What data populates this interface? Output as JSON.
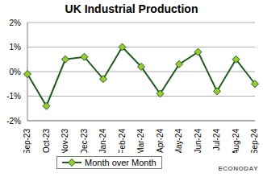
{
  "chart_data": {
    "type": "line",
    "title": "UK Industrial Production",
    "categories": [
      "Sep-23",
      "Oct-23",
      "Nov-23",
      "Dec-23",
      "Jan-24",
      "Feb-24",
      "Mar-24",
      "Apr-24",
      "May-24",
      "Jun-24",
      "Jul-24",
      "Aug-24",
      "Sep-24"
    ],
    "series": [
      {
        "name": "Month over Month",
        "color": "#1f5a1f",
        "marker": "diamond",
        "values": [
          -0.1,
          -1.4,
          0.5,
          0.6,
          -0.3,
          1.0,
          0.2,
          -0.9,
          0.3,
          0.8,
          -0.8,
          0.5,
          -0.5
        ]
      }
    ],
    "ylim": [
      -2,
      2
    ],
    "yticks": [
      {
        "value": -2,
        "label": "-2%"
      },
      {
        "value": -1,
        "label": "-1%"
      },
      {
        "value": 0,
        "label": "0%"
      },
      {
        "value": 1,
        "label": "1%"
      },
      {
        "value": 2,
        "label": "2%"
      }
    ],
    "grid": true,
    "legend": "bottom",
    "annotations": [
      "ECONODAY"
    ]
  }
}
